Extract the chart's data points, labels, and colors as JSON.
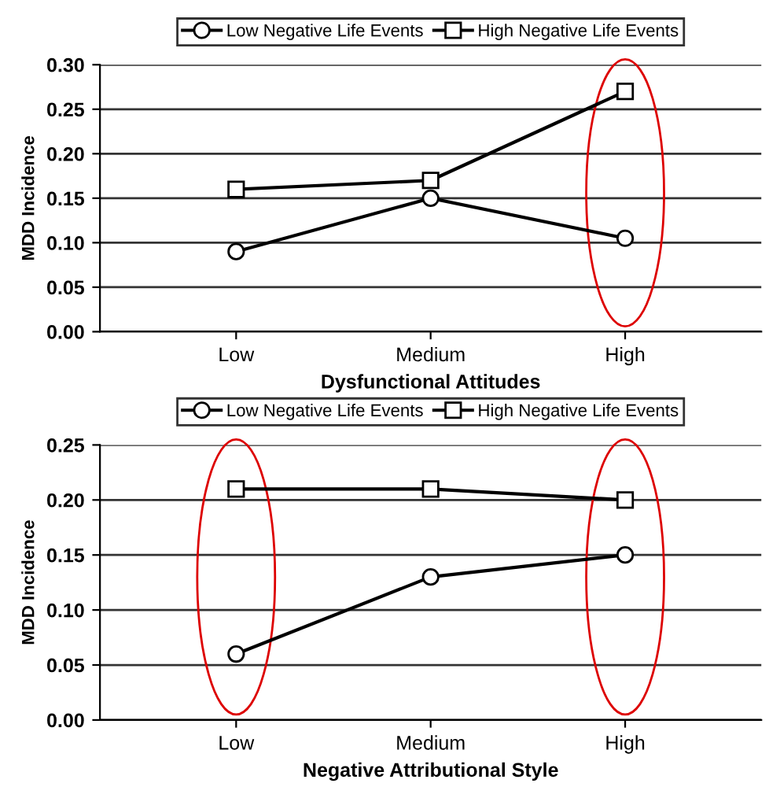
{
  "chart_data": [
    {
      "type": "line",
      "xlabel": "Dysfunctional Attitudes",
      "ylabel": "MDD Incidence",
      "categories": [
        "Low",
        "Medium",
        "High"
      ],
      "series": [
        {
          "name": "Low Negative Life Events",
          "color": "#000000",
          "marker": "circle",
          "values": [
            0.09,
            0.15,
            0.105
          ]
        },
        {
          "name": "High Negative Life Events",
          "color": "#000000",
          "marker": "square",
          "values": [
            0.16,
            0.17,
            0.27
          ]
        }
      ],
      "ylim": [
        0,
        0.3
      ],
      "yticks": [
        {
          "value": 0,
          "label": "0.00"
        },
        {
          "value": 0.05,
          "label": "0.05"
        },
        {
          "value": 0.1,
          "label": "0.10"
        },
        {
          "value": 0.15,
          "label": "0.15"
        },
        {
          "value": 0.2,
          "label": "0.20"
        },
        {
          "value": 0.25,
          "label": "0.25"
        },
        {
          "value": 0.3,
          "label": "0.30"
        }
      ],
      "grid": "y",
      "legend": "top",
      "line_style": "solid"
    },
    {
      "type": "line",
      "xlabel": "Negative Attributional Style",
      "ylabel": "MDD Incidence",
      "categories": [
        "Low",
        "Medium",
        "High"
      ],
      "series": [
        {
          "name": "Low Negative Life Events",
          "color": "#000000",
          "marker": "circle",
          "values": [
            0.06,
            0.13,
            0.15
          ]
        },
        {
          "name": "High Negative Life Events",
          "color": "#000000",
          "marker": "square",
          "values": [
            0.21,
            0.21,
            0.2
          ]
        }
      ],
      "ylim": [
        0,
        0.25
      ],
      "yticks": [
        {
          "value": 0,
          "label": "0.00"
        },
        {
          "value": 0.05,
          "label": "0.05"
        },
        {
          "value": 0.1,
          "label": "0.10"
        },
        {
          "value": 0.15,
          "label": "0.15"
        },
        {
          "value": 0.2,
          "label": "0.20"
        },
        {
          "value": 0.25,
          "label": "0.25"
        }
      ],
      "grid": "y",
      "legend": "top",
      "line_style": "solid"
    }
  ]
}
